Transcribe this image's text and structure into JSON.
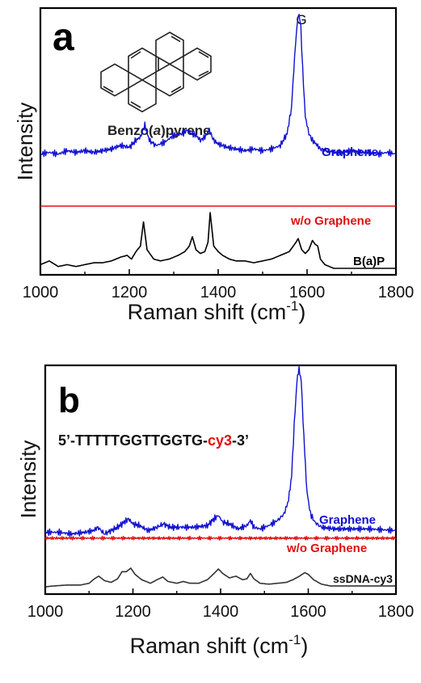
{
  "panels": [
    {
      "label": "a",
      "peak_label": "G",
      "ylabel": "Intensity",
      "xlabel": "Raman shift (cm",
      "xlabel_sup": "-1",
      "xlabel_close": ")",
      "molecule_name_pre": "Benzo(",
      "molecule_name_italic": "a",
      "molecule_name_post": ")pyrene",
      "tick_labels": [
        "1000",
        "1200",
        "1400",
        "1600",
        "1800"
      ],
      "series_labels": [
        "Graphene",
        "w/o Graphene",
        "B(a)P"
      ]
    },
    {
      "label": "b",
      "peak_label": "G",
      "ylabel": "Intensity",
      "xlabel": "Raman shift (cm",
      "xlabel_sup": "-1",
      "xlabel_close": ")",
      "sequence_pre": "5’-TTTTTGGTTGGTG-",
      "sequence_dye": "cy3",
      "sequence_post": "-3’",
      "tick_labels": [
        "1000",
        "1200",
        "1400",
        "1600",
        "1800"
      ],
      "series_labels": [
        "Graphene",
        "w/o Graphene",
        "ssDNA-cy3"
      ]
    }
  ],
  "colors": {
    "graphene": "#1010d0",
    "wo_graphene": "#e01010",
    "sample": "#000000",
    "sample_b": "#333333"
  },
  "chart_data": [
    {
      "type": "line",
      "title": "a",
      "xlabel": "Raman shift (cm-1)",
      "ylabel": "Intensity",
      "xlim": [
        1000,
        1800
      ],
      "x_ticks": [
        1000,
        1200,
        1400,
        1600,
        1800
      ],
      "y_ticks": "none",
      "series": [
        {
          "name": "Graphene",
          "x": [
            1000,
            1020,
            1040,
            1060,
            1080,
            1100,
            1120,
            1140,
            1160,
            1180,
            1200,
            1215,
            1225,
            1235,
            1245,
            1260,
            1280,
            1300,
            1320,
            1330,
            1340,
            1350,
            1360,
            1370,
            1380,
            1390,
            1400,
            1420,
            1440,
            1460,
            1480,
            1500,
            1520,
            1540,
            1555,
            1565,
            1572,
            1578,
            1582,
            1586,
            1590,
            1596,
            1604,
            1612,
            1620,
            1630,
            1645,
            1660,
            1680,
            1700,
            1720,
            1740,
            1760,
            1780,
            1800
          ],
          "y": [
            0.28,
            0.29,
            0.28,
            0.3,
            0.29,
            0.3,
            0.29,
            0.3,
            0.31,
            0.33,
            0.32,
            0.36,
            0.38,
            0.45,
            0.36,
            0.33,
            0.35,
            0.39,
            0.4,
            0.42,
            0.4,
            0.39,
            0.36,
            0.38,
            0.42,
            0.36,
            0.34,
            0.32,
            0.31,
            0.3,
            0.31,
            0.3,
            0.31,
            0.33,
            0.4,
            0.55,
            0.85,
            1.05,
            1.1,
            1.02,
            0.78,
            0.5,
            0.4,
            0.36,
            0.34,
            0.31,
            0.3,
            0.29,
            0.29,
            0.3,
            0.29,
            0.29,
            0.28,
            0.29,
            0.28
          ]
        },
        {
          "name": "w/o Graphene",
          "x": [
            1000,
            1100,
            1200,
            1300,
            1400,
            1500,
            1600,
            1700,
            1800
          ],
          "y": [
            0.18,
            0.18,
            0.18,
            0.18,
            0.18,
            0.18,
            0.18,
            0.18,
            0.18
          ]
        },
        {
          "name": "B(a)P",
          "x": [
            1000,
            1020,
            1040,
            1060,
            1080,
            1100,
            1120,
            1140,
            1160,
            1180,
            1195,
            1205,
            1215,
            1225,
            1232,
            1240,
            1255,
            1270,
            1290,
            1310,
            1325,
            1335,
            1342,
            1350,
            1360,
            1370,
            1377,
            1382,
            1390,
            1400,
            1410,
            1425,
            1440,
            1460,
            1480,
            1500,
            1520,
            1540,
            1560,
            1575,
            1580,
            1588,
            1596,
            1604,
            1612,
            1618,
            1624,
            1630,
            1640,
            1650,
            1660,
            1680,
            1700,
            1720,
            1760,
            1800
          ],
          "y": [
            0.02,
            0.04,
            0.01,
            0.02,
            0.01,
            0.02,
            0.03,
            0.03,
            0.04,
            0.06,
            0.07,
            0.05,
            0.09,
            0.12,
            0.25,
            0.1,
            0.05,
            0.04,
            0.05,
            0.07,
            0.09,
            0.12,
            0.17,
            0.1,
            0.08,
            0.09,
            0.14,
            0.3,
            0.12,
            0.09,
            0.07,
            0.05,
            0.04,
            0.04,
            0.03,
            0.04,
            0.05,
            0.07,
            0.09,
            0.14,
            0.16,
            0.1,
            0.08,
            0.1,
            0.15,
            0.13,
            0.12,
            0.05,
            0.02,
            0.01,
            0.0,
            0.0,
            0.0,
            0.0,
            0.0,
            0.0
          ]
        }
      ]
    },
    {
      "type": "line",
      "title": "b",
      "xlabel": "Raman shift (cm-1)",
      "ylabel": "Intensity",
      "xlim": [
        1000,
        1800
      ],
      "x_ticks": [
        1000,
        1200,
        1400,
        1600,
        1800
      ],
      "y_ticks": "none",
      "series": [
        {
          "name": "Graphene",
          "x": [
            1000,
            1030,
            1060,
            1090,
            1110,
            1120,
            1135,
            1150,
            1165,
            1180,
            1190,
            1200,
            1215,
            1235,
            1255,
            1270,
            1285,
            1310,
            1340,
            1370,
            1385,
            1395,
            1405,
            1420,
            1440,
            1460,
            1468,
            1476,
            1490,
            1510,
            1530,
            1545,
            1555,
            1562,
            1568,
            1574,
            1579,
            1584,
            1590,
            1597,
            1605,
            1615,
            1630,
            1660,
            1700,
            1740,
            1800
          ],
          "y": [
            0.06,
            0.06,
            0.05,
            0.06,
            0.07,
            0.09,
            0.05,
            0.07,
            0.09,
            0.12,
            0.14,
            0.11,
            0.1,
            0.07,
            0.09,
            0.11,
            0.09,
            0.09,
            0.09,
            0.1,
            0.14,
            0.16,
            0.12,
            0.11,
            0.08,
            0.1,
            0.13,
            0.09,
            0.08,
            0.1,
            0.13,
            0.17,
            0.25,
            0.4,
            0.7,
            0.95,
            1.04,
            0.96,
            0.62,
            0.3,
            0.17,
            0.12,
            0.09,
            0.08,
            0.08,
            0.08,
            0.07
          ]
        },
        {
          "name": "w/o Graphene",
          "x": [
            1000,
            1100,
            1200,
            1300,
            1400,
            1500,
            1600,
            1700,
            1800
          ],
          "y": [
            -0.04,
            -0.04,
            -0.04,
            -0.04,
            -0.04,
            -0.04,
            -0.04,
            -0.04,
            -0.04
          ]
        },
        {
          "name": "ssDNA-cy3",
          "x": [
            1000,
            1020,
            1050,
            1080,
            1100,
            1112,
            1122,
            1135,
            1150,
            1165,
            1175,
            1185,
            1195,
            1205,
            1220,
            1240,
            1255,
            1268,
            1280,
            1300,
            1315,
            1330,
            1350,
            1370,
            1385,
            1395,
            1405,
            1420,
            1435,
            1450,
            1460,
            1468,
            1476,
            1490,
            1510,
            1530,
            1550,
            1565,
            1580,
            1592,
            1600,
            1612,
            1630,
            1650,
            1680,
            1720,
            1760,
            1800
          ],
          "y": [
            0.0,
            0.01,
            0.02,
            0.02,
            0.04,
            0.09,
            0.12,
            0.07,
            0.05,
            0.09,
            0.17,
            0.17,
            0.21,
            0.14,
            0.08,
            0.04,
            0.08,
            0.11,
            0.06,
            0.04,
            0.06,
            0.04,
            0.04,
            0.08,
            0.15,
            0.2,
            0.15,
            0.1,
            0.12,
            0.08,
            0.09,
            0.15,
            0.09,
            0.04,
            0.03,
            0.04,
            0.05,
            0.08,
            0.12,
            0.16,
            0.14,
            0.08,
            0.03,
            0.01,
            0.01,
            0.01,
            0.01,
            0.01
          ]
        }
      ]
    }
  ]
}
